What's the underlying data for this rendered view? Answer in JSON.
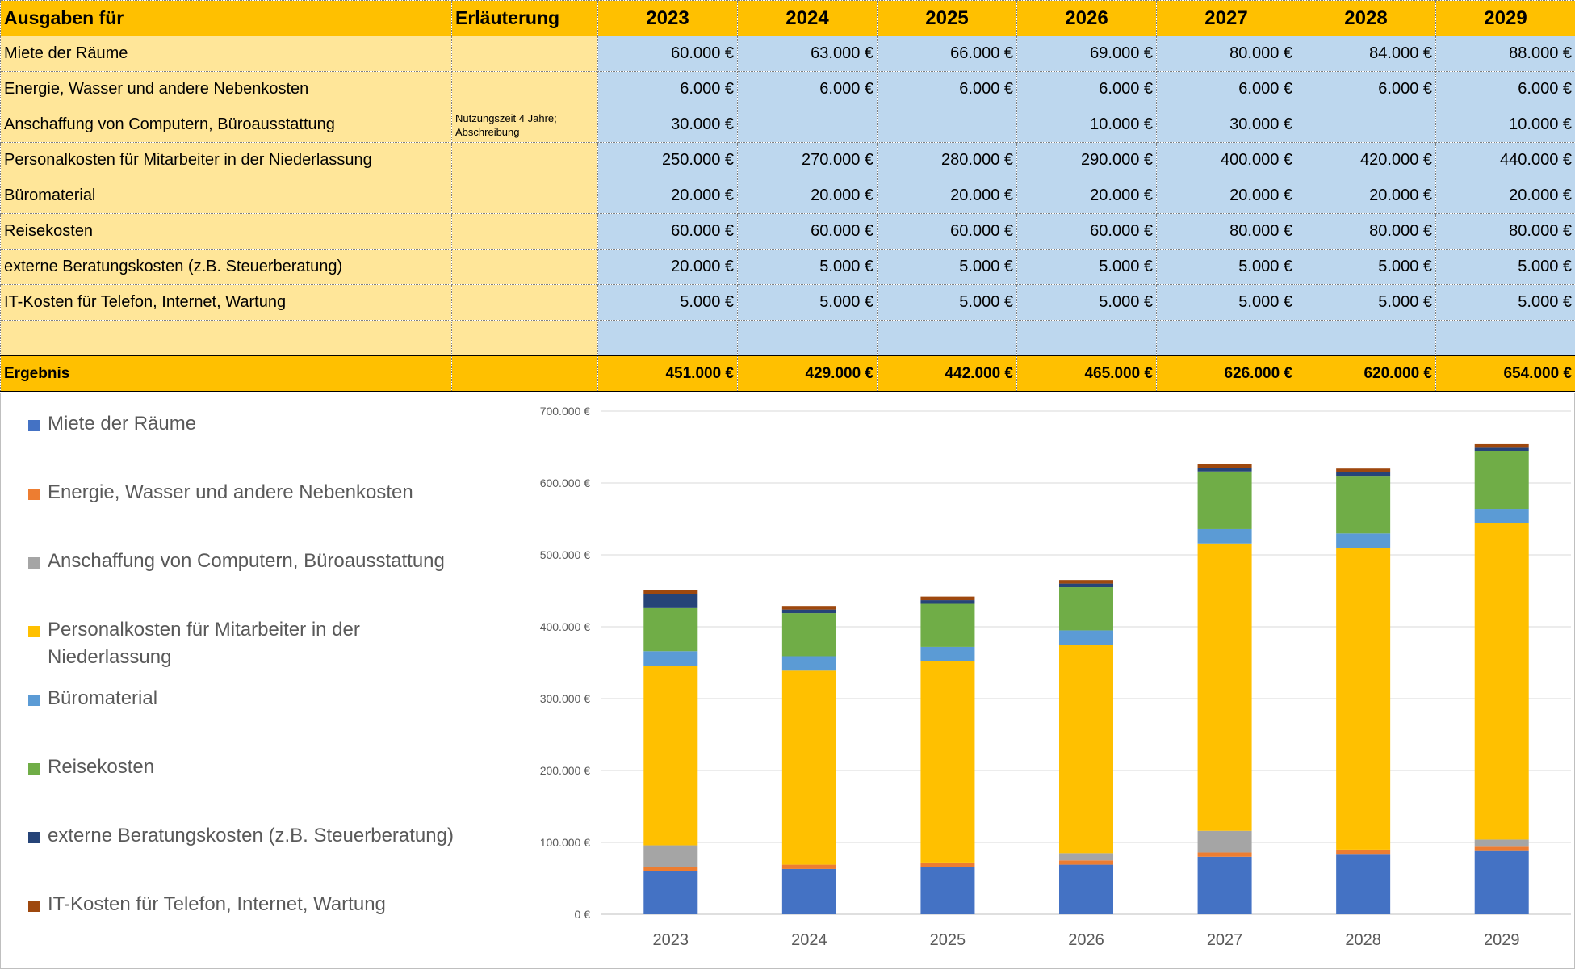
{
  "table": {
    "header": {
      "label": "Ausgaben für",
      "note": "Erläuterung",
      "years": [
        "2023",
        "2024",
        "2025",
        "2026",
        "2027",
        "2028",
        "2029"
      ]
    },
    "rows": [
      {
        "label": "Miete der Räume",
        "note": "",
        "values": [
          "60.000 €",
          "63.000 €",
          "66.000 €",
          "69.000 €",
          "80.000 €",
          "84.000 €",
          "88.000 €"
        ]
      },
      {
        "label": "Energie, Wasser und andere Nebenkosten",
        "note": "",
        "values": [
          "6.000 €",
          "6.000 €",
          "6.000 €",
          "6.000 €",
          "6.000 €",
          "6.000 €",
          "6.000 €"
        ]
      },
      {
        "label": "Anschaffung von Computern, Büroausstattung",
        "note": "Nutzungszeit 4 Jahre; Abschreibung",
        "values": [
          "30.000 €",
          "",
          "",
          "10.000 €",
          "30.000 €",
          "",
          "10.000 €"
        ]
      },
      {
        "label": "Personalkosten für Mitarbeiter in der Niederlassung",
        "note": "",
        "values": [
          "250.000 €",
          "270.000 €",
          "280.000 €",
          "290.000 €",
          "400.000 €",
          "420.000 €",
          "440.000 €"
        ]
      },
      {
        "label": "Büromaterial",
        "note": "",
        "values": [
          "20.000 €",
          "20.000 €",
          "20.000 €",
          "20.000 €",
          "20.000 €",
          "20.000 €",
          "20.000 €"
        ]
      },
      {
        "label": "Reisekosten",
        "note": "",
        "values": [
          "60.000 €",
          "60.000 €",
          "60.000 €",
          "60.000 €",
          "80.000 €",
          "80.000 €",
          "80.000 €"
        ]
      },
      {
        "label": "externe Beratungskosten (z.B. Steuerberatung)",
        "note": "",
        "values": [
          "20.000 €",
          "5.000 €",
          "5.000 €",
          "5.000 €",
          "5.000 €",
          "5.000 €",
          "5.000 €"
        ]
      },
      {
        "label": "IT-Kosten für Telefon, Internet, Wartung",
        "note": "",
        "values": [
          "5.000 €",
          "5.000 €",
          "5.000 €",
          "5.000 €",
          "5.000 €",
          "5.000 €",
          "5.000 €"
        ]
      },
      {
        "label": "",
        "note": "",
        "values": [
          "",
          "",
          "",
          "",
          "",
          "",
          ""
        ]
      }
    ],
    "total": {
      "label": "Ergebnis",
      "values": [
        "451.000 €",
        "429.000 €",
        "442.000 €",
        "465.000 €",
        "626.000 €",
        "620.000 €",
        "654.000 €"
      ]
    }
  },
  "chart_data": {
    "type": "bar",
    "stacked": true,
    "categories": [
      "2023",
      "2024",
      "2025",
      "2026",
      "2027",
      "2028",
      "2029"
    ],
    "series": [
      {
        "name": "Miete der Räume",
        "color": "#4472c4",
        "values": [
          60000,
          63000,
          66000,
          69000,
          80000,
          84000,
          88000
        ]
      },
      {
        "name": "Energie, Wasser und andere Nebenkosten",
        "color": "#ed7d31",
        "values": [
          6000,
          6000,
          6000,
          6000,
          6000,
          6000,
          6000
        ]
      },
      {
        "name": "Anschaffung von Computern, Büroausstattung",
        "color": "#a5a5a5",
        "values": [
          30000,
          0,
          0,
          10000,
          30000,
          0,
          10000
        ]
      },
      {
        "name": "Personalkosten für Mitarbeiter in der Niederlassung",
        "color": "#ffc000",
        "values": [
          250000,
          270000,
          280000,
          290000,
          400000,
          420000,
          440000
        ]
      },
      {
        "name": "Büromaterial",
        "color": "#5b9bd5",
        "values": [
          20000,
          20000,
          20000,
          20000,
          20000,
          20000,
          20000
        ]
      },
      {
        "name": "Reisekosten",
        "color": "#70ad47",
        "values": [
          60000,
          60000,
          60000,
          60000,
          80000,
          80000,
          80000
        ]
      },
      {
        "name": "externe Beratungskosten (z.B. Steuerberatung)",
        "color": "#264478",
        "values": [
          20000,
          5000,
          5000,
          5000,
          5000,
          5000,
          5000
        ]
      },
      {
        "name": "IT-Kosten für Telefon, Internet, Wartung",
        "color": "#9e480e",
        "values": [
          5000,
          5000,
          5000,
          5000,
          5000,
          5000,
          5000
        ]
      }
    ],
    "ylim": [
      0,
      700000
    ],
    "yticks": [
      0,
      100000,
      200000,
      300000,
      400000,
      500000,
      600000,
      700000
    ],
    "ytick_labels": [
      "0 €",
      "100.000 €",
      "200.000 €",
      "300.000 €",
      "400.000 €",
      "500.000 €",
      "600.000 €",
      "700.000 €"
    ],
    "grid": true,
    "legend": "left"
  }
}
